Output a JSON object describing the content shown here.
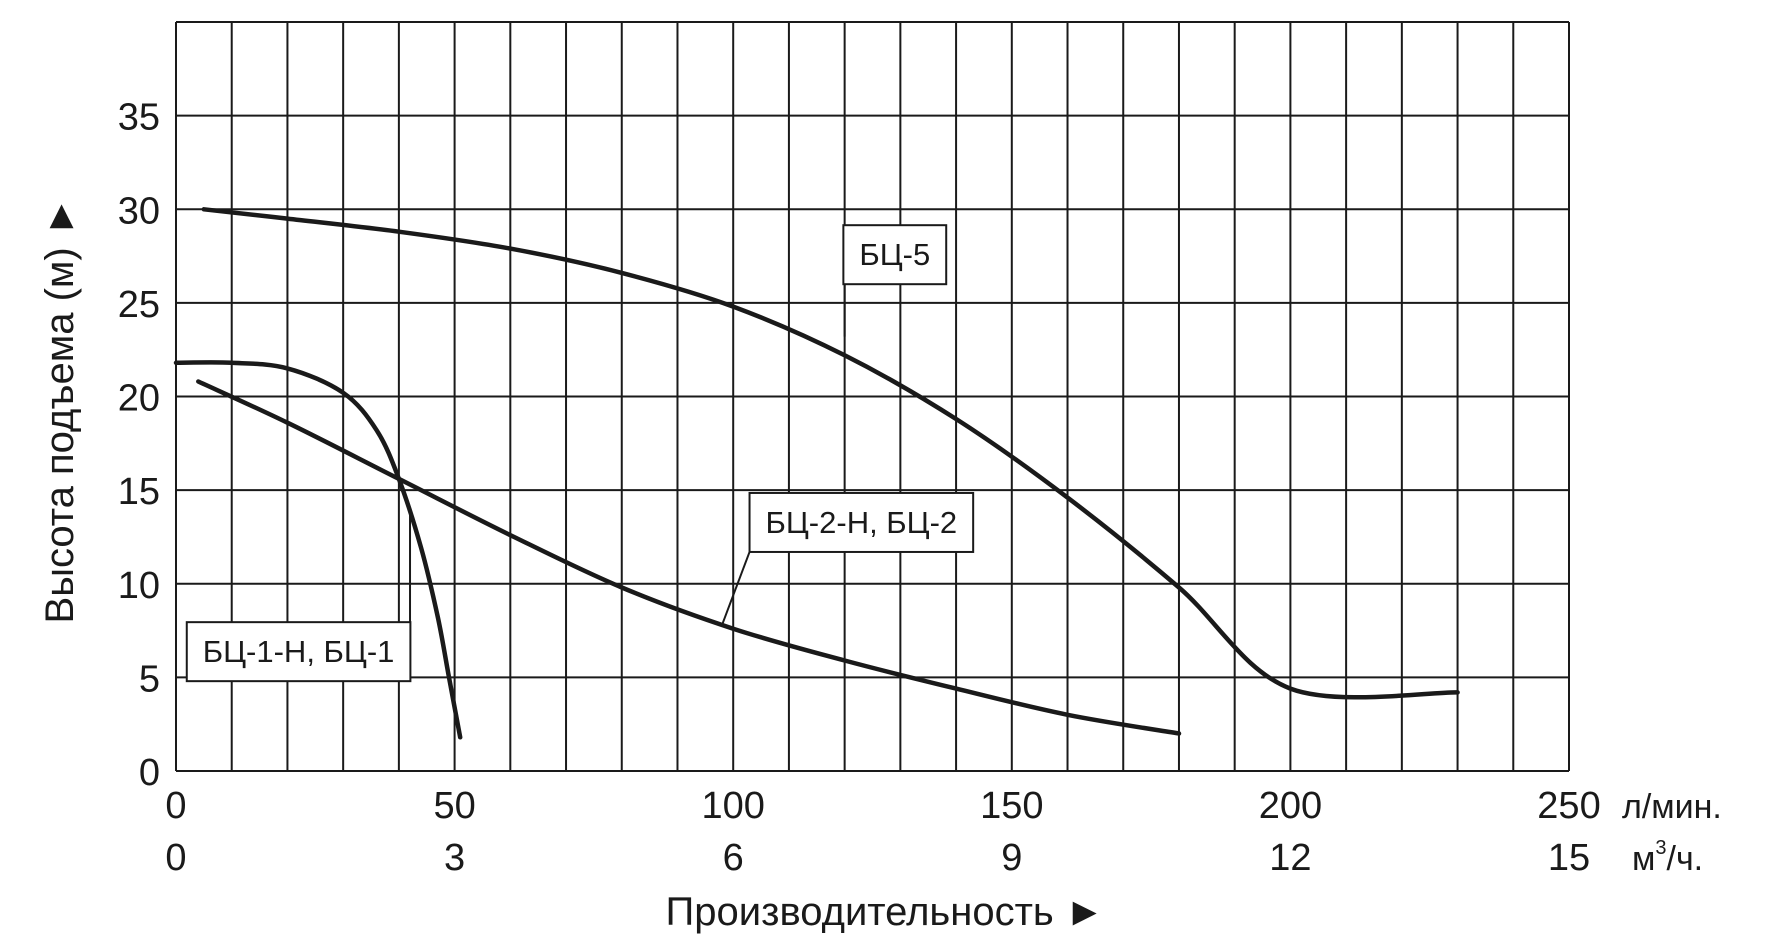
{
  "chart_data": {
    "type": "line",
    "ylabel": "Высота подъема (м) ►",
    "xlabel": "Производительность ►",
    "x_unit_primary": "л/мин.",
    "x_unit_secondary_base": "м",
    "x_unit_secondary_sup": "3",
    "x_unit_secondary_tail": "/ч.",
    "xlim": [
      0,
      250
    ],
    "ylim": [
      0,
      40
    ],
    "x_grid_step": 10,
    "y_grid_step": 5,
    "grid": true,
    "x_ticks_primary": [
      {
        "value": 0,
        "label": "0"
      },
      {
        "value": 50,
        "label": "50"
      },
      {
        "value": 100,
        "label": "100"
      },
      {
        "value": 150,
        "label": "150"
      },
      {
        "value": 200,
        "label": "200"
      },
      {
        "value": 250,
        "label": "250"
      }
    ],
    "x_ticks_secondary": [
      {
        "value": 0,
        "label": "0"
      },
      {
        "value": 50,
        "label": "3"
      },
      {
        "value": 100,
        "label": "6"
      },
      {
        "value": 150,
        "label": "9"
      },
      {
        "value": 200,
        "label": "12"
      },
      {
        "value": 250,
        "label": "15"
      }
    ],
    "y_ticks": [
      {
        "value": 0,
        "label": "0"
      },
      {
        "value": 5,
        "label": "5"
      },
      {
        "value": 10,
        "label": "10"
      },
      {
        "value": 15,
        "label": "15"
      },
      {
        "value": 20,
        "label": "20"
      },
      {
        "value": 25,
        "label": "25"
      },
      {
        "value": 30,
        "label": "30"
      },
      {
        "value": 35,
        "label": "35"
      }
    ],
    "series": [
      {
        "name": "БЦ-5",
        "points": [
          [
            5,
            30
          ],
          [
            20,
            29.5
          ],
          [
            40,
            28.8
          ],
          [
            60,
            27.9
          ],
          [
            80,
            26.6
          ],
          [
            100,
            24.8
          ],
          [
            120,
            22.2
          ],
          [
            140,
            18.8
          ],
          [
            160,
            14.6
          ],
          [
            180,
            9.8
          ],
          [
            200,
            4.4
          ],
          [
            230,
            4.2
          ]
        ],
        "label_anchor": [
          120,
          23.2
        ],
        "label_value": [
          129,
          27.6
        ]
      },
      {
        "name": "БЦ-2-Н, БЦ-2",
        "points": [
          [
            4,
            20.8
          ],
          [
            20,
            18.6
          ],
          [
            40,
            15.6
          ],
          [
            60,
            12.6
          ],
          [
            80,
            9.8
          ],
          [
            100,
            7.6
          ],
          [
            120,
            5.9
          ],
          [
            140,
            4.4
          ],
          [
            160,
            3.0
          ],
          [
            180,
            2.0
          ]
        ],
        "label_anchor": [
          98,
          7.8
        ],
        "label_value": [
          123,
          13.3
        ]
      },
      {
        "name": "БЦ-1-Н, БЦ-1",
        "points": [
          [
            0,
            21.8
          ],
          [
            10,
            21.8
          ],
          [
            20,
            21.5
          ],
          [
            30,
            20.2
          ],
          [
            36,
            18.2
          ],
          [
            40,
            15.6
          ],
          [
            44,
            11.9
          ],
          [
            47,
            8.2
          ],
          [
            49,
            5.0
          ],
          [
            51,
            1.8
          ]
        ],
        "label_anchor": [
          42,
          13.7
        ],
        "label_value": [
          22,
          6.4
        ]
      }
    ]
  }
}
